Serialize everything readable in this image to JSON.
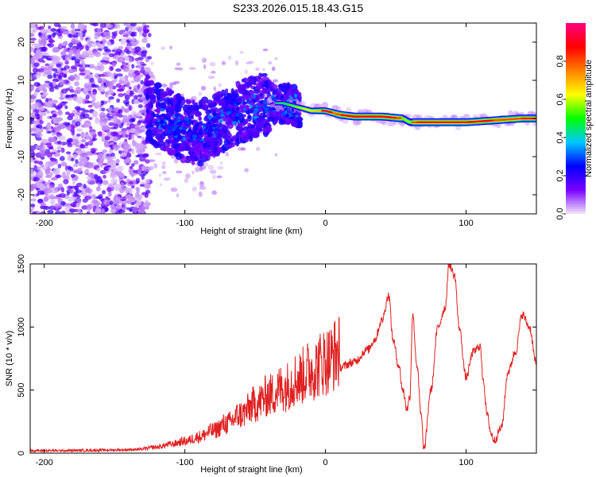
{
  "title": "S233.2026.015.18.43.G15",
  "chart_data": [
    {
      "type": "heatmap",
      "name": "spectrogram",
      "xlabel": "Height of straight line (km)",
      "ylabel": "Frequency (Hz)",
      "xlim": [
        -210,
        150
      ],
      "ylim": [
        -25,
        25
      ],
      "xticks": [
        -200,
        -100,
        0,
        100
      ],
      "yticks": [
        -20,
        -10,
        0,
        10,
        20
      ],
      "colorbar": {
        "label": "Normalized spectral amplitude",
        "range": [
          0,
          1
        ],
        "ticks": [
          "0.0",
          "0.2",
          "0.4",
          "0.6",
          "0.8"
        ],
        "colors": [
          "#f0e6f8",
          "#7a00ff",
          "#0000ff",
          "#00c8ff",
          "#00ff00",
          "#ffff00",
          "#ff8000",
          "#ff0000",
          "#ff0080"
        ]
      },
      "ridge": {
        "description": "dominant frequency track",
        "points": [
          [
            -130,
            3
          ],
          [
            -120,
            1
          ],
          [
            -100,
            -3
          ],
          [
            -90,
            -4
          ],
          [
            -80,
            -2
          ],
          [
            -70,
            0
          ],
          [
            -60,
            2
          ],
          [
            -50,
            3
          ],
          [
            -40,
            4
          ],
          [
            -30,
            4
          ],
          [
            -20,
            3
          ],
          [
            -10,
            2
          ],
          [
            0,
            2
          ],
          [
            10,
            1
          ],
          [
            20,
            0.5
          ],
          [
            40,
            0.5
          ],
          [
            55,
            0
          ],
          [
            60,
            -1
          ],
          [
            80,
            -1
          ],
          [
            100,
            -1
          ],
          [
            120,
            -0.5
          ],
          [
            140,
            0
          ],
          [
            150,
            0
          ]
        ]
      }
    },
    {
      "type": "line",
      "name": "snr",
      "xlabel": "Height of straight line (km)",
      "ylabel": "SNR (10 * v/v)",
      "xlim": [
        -210,
        150
      ],
      "ylim": [
        0,
        1500
      ],
      "xticks": [
        -200,
        -100,
        0,
        100
      ],
      "yticks": [
        0,
        500,
        1000,
        1500
      ],
      "color": "#e02020",
      "series": [
        {
          "name": "SNR",
          "x": [
            -210,
            -190,
            -170,
            -150,
            -130,
            -120,
            -110,
            -100,
            -90,
            -80,
            -70,
            -60,
            -50,
            -40,
            -30,
            -20,
            -10,
            0,
            10,
            20,
            30,
            35,
            40,
            45,
            48,
            52,
            55,
            58,
            60,
            62,
            65,
            68,
            70,
            75,
            80,
            85,
            88,
            92,
            95,
            100,
            105,
            110,
            112,
            115,
            118,
            120,
            125,
            130,
            135,
            140,
            145,
            150
          ],
          "y": [
            20,
            20,
            22,
            25,
            30,
            40,
            60,
            80,
            110,
            150,
            200,
            260,
            330,
            390,
            440,
            500,
            560,
            620,
            680,
            720,
            820,
            900,
            1050,
            1250,
            900,
            700,
            500,
            350,
            450,
            1100,
            700,
            300,
            30,
            500,
            1000,
            1150,
            1500,
            1400,
            1000,
            600,
            800,
            850,
            600,
            300,
            150,
            100,
            200,
            650,
            800,
            1100,
            1000,
            700
          ]
        }
      ]
    }
  ]
}
